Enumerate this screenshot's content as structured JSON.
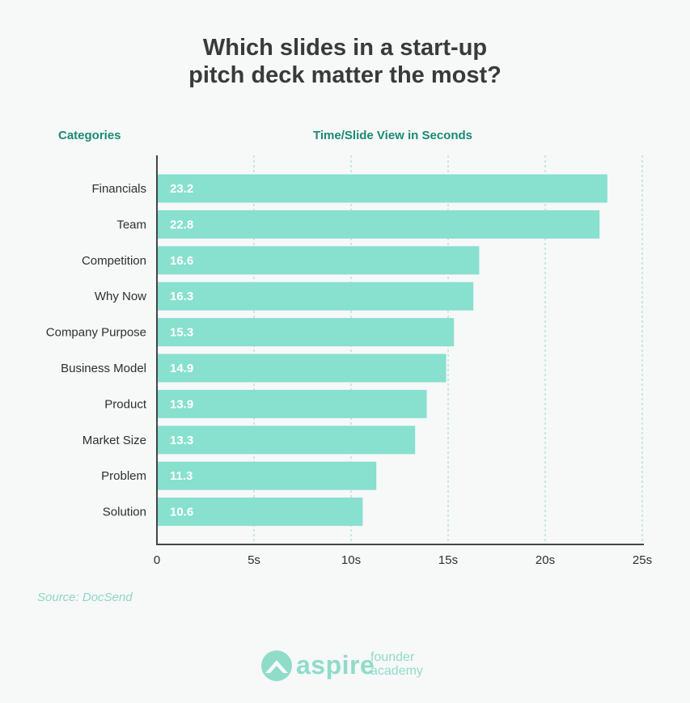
{
  "title_lines": [
    "Which slides in a start-up",
    "pitch deck matter the most?"
  ],
  "col_heads": {
    "categories": "Categories",
    "values": "Time/Slide View in Seconds"
  },
  "source": "Source: DocSend",
  "logo": {
    "word": "aspire",
    "sub_lines": [
      "founder",
      "academy"
    ]
  },
  "colors": {
    "bar": "#88e0cf",
    "accent": "#1b8a73",
    "axis": "#444444",
    "grid": "#9fd9cb"
  },
  "chart_data": {
    "type": "bar",
    "orientation": "horizontal",
    "title": "Which slides in a start-up pitch deck matter the most?",
    "ylabel": "Categories",
    "xlabel": "Time/Slide View in Seconds",
    "categories": [
      "Financials",
      "Team",
      "Competition",
      "Why Now",
      "Company Purpose",
      "Business Model",
      "Product",
      "Market Size",
      "Problem",
      "Solution"
    ],
    "values": [
      23.2,
      22.8,
      16.6,
      16.3,
      15.3,
      14.9,
      13.9,
      13.3,
      11.3,
      10.6
    ],
    "value_labels": [
      "23.2",
      "22.8",
      "16.6",
      "16.3",
      "15.3",
      "14.9",
      "13.9",
      "13.3",
      "11.3",
      "10.6"
    ],
    "xlim": [
      0,
      25
    ],
    "xticks": [
      0,
      5,
      10,
      15,
      20,
      25
    ],
    "xtick_labels": [
      "0",
      "5s",
      "10s",
      "15s",
      "20s",
      "25s"
    ],
    "grid": true
  }
}
